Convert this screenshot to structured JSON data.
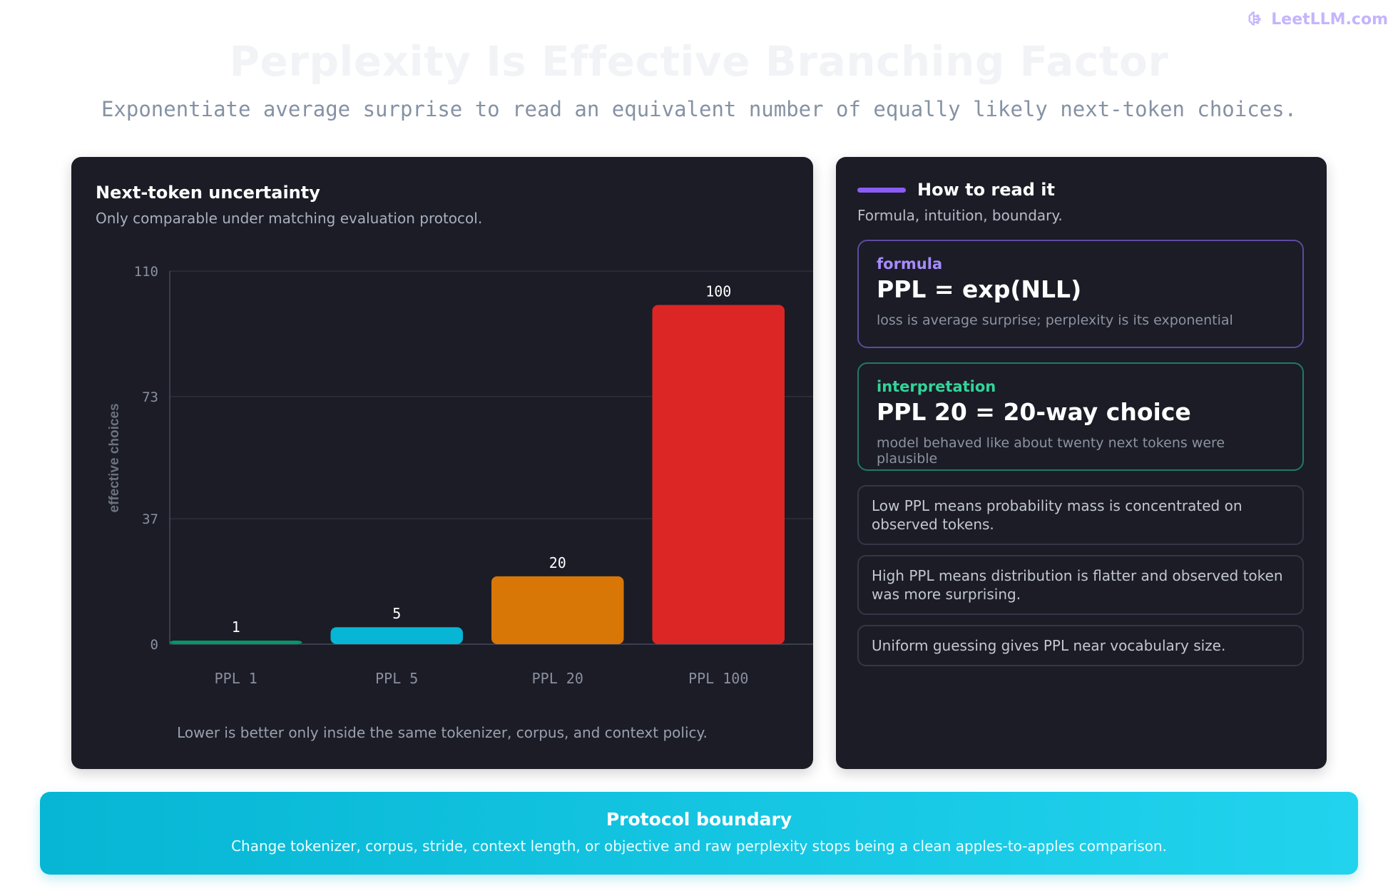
{
  "brand": {
    "name": "LeetLLM.com",
    "icon": "brain-icon",
    "color": "#c4b5fd"
  },
  "header": {
    "title": "Perplexity Is Effective Branching Factor",
    "subtitle": "Exponentiate average surprise to read an equivalent number of equally likely next-token choices."
  },
  "chart_panel": {
    "title": "Next-token uncertainty",
    "subtitle": "Only comparable under matching evaluation protocol.",
    "note": "Lower is better only inside the same tokenizer, corpus, and context policy."
  },
  "chart_data": {
    "type": "bar",
    "ylabel": "effective choices",
    "xlabel": "",
    "ylim": [
      0,
      110
    ],
    "yticks": [
      0,
      37,
      73,
      110
    ],
    "grid": true,
    "categories": [
      "PPL 1",
      "PPL 5",
      "PPL 20",
      "PPL 100"
    ],
    "values": [
      1,
      5,
      20,
      100
    ],
    "data_labels": [
      "1",
      "5",
      "20",
      "100"
    ],
    "colors": [
      "#059669",
      "#06b6d4",
      "#d97706",
      "#dc2626"
    ]
  },
  "read_panel": {
    "title": "How to read it",
    "subtitle": "Formula, intuition, boundary.",
    "accent": "#8b5cf6",
    "formula": {
      "tag": "formula",
      "main": "PPL = exp(NLL)",
      "detail": "loss is average surprise; perplexity is its exponential"
    },
    "interpretation": {
      "tag": "interpretation",
      "main": "PPL 20 = 20-way choice",
      "detail": "model behaved like about twenty next tokens were plausible"
    },
    "notes": [
      "Low PPL means probability mass is concentrated on observed tokens.",
      "High PPL means distribution is flatter and observed token was more surprising.",
      "Uniform guessing gives PPL near vocabulary size."
    ]
  },
  "footer": {
    "title": "Protocol boundary",
    "text": "Change tokenizer, corpus, stride, context length, or objective and raw perplexity stops being a clean apples-to-apples comparison.",
    "color": "#06b6d4"
  }
}
